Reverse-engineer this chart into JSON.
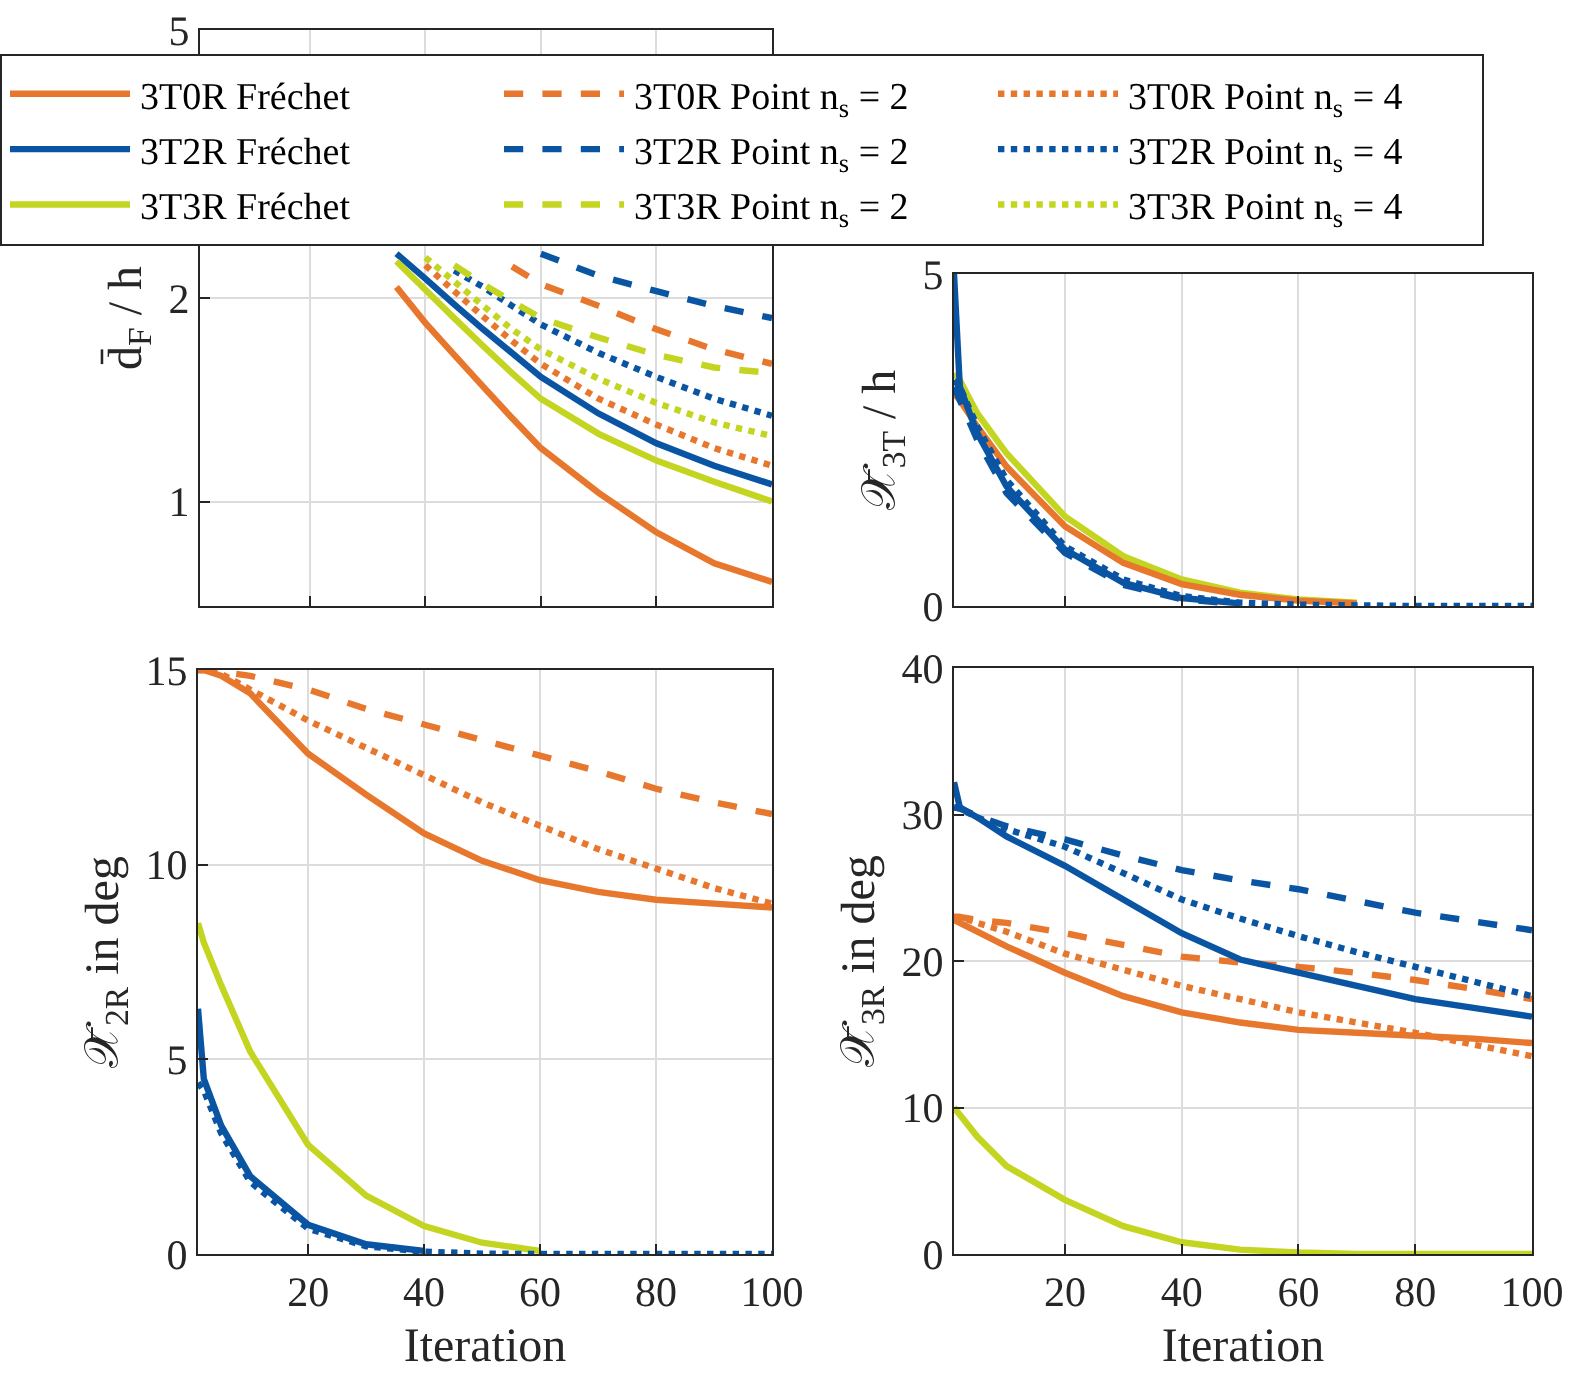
{
  "chart_data": [
    {
      "type": "line",
      "ylabel": "d̄$_{F}$ / h",
      "log": "y",
      "ylim": [
        0.7,
        5
      ],
      "yticks": [
        1,
        2,
        5
      ],
      "xlim": [
        1,
        100
      ],
      "xticks": [
        20,
        40,
        60,
        80,
        100
      ],
      "tick_labels": "y",
      "grid": true,
      "legend": "top",
      "x": [
        35,
        40,
        45,
        50,
        55,
        60,
        70,
        80,
        90,
        100
      ],
      "series": [
        {
          "name": "3T0R Fréchet",
          "color": "#e8772e",
          "line_style": "solid",
          "values": [
            2.08,
            1.84,
            1.65,
            1.48,
            1.33,
            1.2,
            1.03,
            0.9,
            0.81,
            0.76
          ]
        },
        {
          "name": "3T0R Point n$_{s}$ = 2",
          "color": "#e8772e",
          "line_style": "dashed",
          "values": [
            null,
            null,
            null,
            null,
            2.23,
            2.1,
            1.95,
            1.8,
            1.68,
            1.6
          ]
        },
        {
          "name": "3T0R Point n$_{s}$ = 4",
          "color": "#e8772e",
          "line_style": "dotted",
          "values": [
            null,
            2.24,
            2.05,
            1.88,
            1.73,
            1.6,
            1.42,
            1.3,
            1.2,
            1.13
          ]
        },
        {
          "name": "3T2R Fréchet",
          "color": "#0a55a3",
          "line_style": "solid",
          "values": [
            2.33,
            2.14,
            1.96,
            1.8,
            1.66,
            1.53,
            1.35,
            1.22,
            1.13,
            1.06
          ]
        },
        {
          "name": "3T2R Point n$_{s}$ = 2",
          "color": "#0a55a3",
          "line_style": "dashed",
          "values": [
            null,
            null,
            null,
            null,
            null,
            2.33,
            2.16,
            2.05,
            1.95,
            1.87
          ]
        },
        {
          "name": "3T2R Point n$_{s}$ = 4",
          "color": "#0a55a3",
          "line_style": "dotted",
          "values": [
            null,
            null,
            2.2,
            2.08,
            1.95,
            1.83,
            1.66,
            1.53,
            1.42,
            1.34
          ]
        },
        {
          "name": "3T3R Fréchet",
          "color": "#c3d520",
          "line_style": "solid",
          "values": [
            2.27,
            2.06,
            1.87,
            1.7,
            1.55,
            1.42,
            1.26,
            1.15,
            1.07,
            1.0
          ]
        },
        {
          "name": "3T3R Point n$_{s}$ = 2",
          "color": "#c3d520",
          "line_style": "dashed",
          "values": [
            null,
            null,
            2.24,
            2.1,
            1.98,
            1.87,
            1.75,
            1.65,
            1.58,
            1.55
          ]
        },
        {
          "name": "3T3R Point n$_{s}$ = 4",
          "color": "#c3d520",
          "line_style": "dotted",
          "values": [
            null,
            2.3,
            2.12,
            1.95,
            1.8,
            1.68,
            1.52,
            1.4,
            1.31,
            1.25
          ]
        }
      ]
    },
    {
      "type": "line",
      "ylabel": "𝒳̄$_{3T}$ / h",
      "ylim": [
        0,
        5
      ],
      "yticks": [
        0,
        5
      ],
      "xlim": [
        1,
        100
      ],
      "xticks": [
        20,
        40,
        60,
        80,
        100
      ],
      "tick_labels": "y",
      "grid": true,
      "x": [
        1,
        2,
        5,
        10,
        20,
        30,
        40,
        50,
        60,
        70,
        80,
        90,
        100
      ],
      "series": [
        {
          "color": "#c3d520",
          "line_style": "solid",
          "values": [
            3.5,
            3.4,
            2.9,
            2.3,
            1.35,
            0.75,
            0.4,
            0.2,
            0.1,
            0.05,
            null,
            null,
            null
          ]
        },
        {
          "color": "#e8772e",
          "line_style": "solid",
          "values": [
            3.2,
            3.1,
            2.7,
            2.1,
            1.2,
            0.65,
            0.33,
            0.17,
            0.08,
            0.04,
            null,
            null,
            null
          ]
        },
        {
          "color": "#0a55a3",
          "line_style": "solid",
          "values": [
            5,
            3.3,
            2.6,
            1.8,
            0.85,
            0.35,
            0.12,
            0.04,
            null,
            null,
            null,
            null,
            null
          ]
        },
        {
          "color": "#0a55a3",
          "line_style": "dashed",
          "values": [
            3.3,
            3.1,
            2.5,
            1.7,
            0.8,
            0.32,
            0.1,
            0.03,
            null,
            null,
            null,
            null,
            null
          ]
        },
        {
          "color": "#0a55a3",
          "line_style": "dotted",
          "values": [
            3.4,
            3.3,
            2.7,
            1.9,
            0.9,
            0.4,
            0.15,
            0.05,
            0.02,
            0.01,
            0,
            0,
            0
          ]
        }
      ]
    },
    {
      "type": "line",
      "ylabel": "𝒳̄$_{2R}$ in deg",
      "xlabel": "Iteration",
      "ylim": [
        0,
        15
      ],
      "yticks": [
        0,
        5,
        10,
        15
      ],
      "xlim": [
        1,
        100
      ],
      "xticks": [
        20,
        40,
        60,
        80,
        100
      ],
      "grid": true,
      "x": [
        1,
        2,
        5,
        10,
        20,
        30,
        40,
        50,
        60,
        70,
        80,
        90,
        100
      ],
      "series": [
        {
          "color": "#e8772e",
          "line_style": "solid",
          "values": [
            15,
            15,
            14.85,
            14.4,
            12.85,
            11.8,
            10.8,
            10.1,
            9.6,
            9.3,
            9.1,
            9.0,
            8.9
          ]
        },
        {
          "color": "#e8772e",
          "line_style": "dashed",
          "values": [
            15,
            15,
            14.95,
            14.85,
            14.5,
            14.0,
            13.6,
            13.2,
            12.8,
            12.4,
            11.95,
            11.6,
            11.3
          ]
        },
        {
          "color": "#e8772e",
          "line_style": "dotted",
          "values": [
            15,
            15,
            14.9,
            14.5,
            13.7,
            13.0,
            12.3,
            11.6,
            11.0,
            10.4,
            9.9,
            9.4,
            9.0
          ]
        },
        {
          "color": "#c3d520",
          "line_style": "solid",
          "values": [
            8.5,
            8.0,
            6.9,
            5.2,
            2.8,
            1.5,
            0.72,
            0.29,
            0.08,
            null,
            null,
            null,
            null
          ]
        },
        {
          "color": "#0a55a3",
          "line_style": "solid",
          "values": [
            6.3,
            4.5,
            3.3,
            2.0,
            0.75,
            0.25,
            0.08,
            null,
            null,
            null,
            null,
            null,
            null
          ]
        },
        {
          "color": "#0a55a3",
          "line_style": "dotted",
          "values": [
            4.4,
            4.2,
            3.1,
            1.85,
            0.65,
            0.2,
            0.06,
            0.01,
            0,
            0,
            0,
            0,
            0
          ]
        }
      ]
    },
    {
      "type": "line",
      "ylabel": "𝒳̄$_{3R}$ in deg",
      "xlabel": "Iteration",
      "ylim": [
        0,
        40
      ],
      "yticks": [
        0,
        10,
        20,
        30,
        40
      ],
      "xlim": [
        1,
        100
      ],
      "xticks": [
        20,
        40,
        60,
        80,
        100
      ],
      "grid": true,
      "x": [
        1,
        2,
        5,
        10,
        20,
        30,
        40,
        50,
        60,
        70,
        80,
        90,
        100
      ],
      "series": [
        {
          "color": "#e8772e",
          "line_style": "solid",
          "values": [
            22.8,
            22.6,
            22,
            21.0,
            19.2,
            17.6,
            16.5,
            15.8,
            15.3,
            15.1,
            14.9,
            14.7,
            14.4
          ]
        },
        {
          "color": "#e8772e",
          "line_style": "dashed",
          "values": [
            23,
            23,
            22.8,
            22.6,
            21.9,
            21.1,
            20.3,
            19.9,
            19.6,
            19.2,
            18.7,
            18.1,
            17.4
          ]
        },
        {
          "color": "#e8772e",
          "line_style": "dotted",
          "values": [
            23,
            23,
            22.6,
            22.0,
            20.5,
            19.4,
            18.3,
            17.4,
            16.5,
            15.8,
            15.1,
            14.3,
            13.5
          ]
        },
        {
          "color": "#0a55a3",
          "line_style": "solid",
          "values": [
            32.2,
            30.5,
            29.8,
            28.5,
            26.5,
            24.2,
            21.9,
            20.1,
            19.2,
            18.3,
            17.4,
            16.8,
            16.2
          ]
        },
        {
          "color": "#0a55a3",
          "line_style": "dashed",
          "values": [
            30.5,
            30.4,
            29.9,
            29.2,
            28.3,
            27.2,
            26.2,
            25.5,
            24.9,
            24.1,
            23.3,
            22.7,
            22.1
          ]
        },
        {
          "color": "#0a55a3",
          "line_style": "dotted",
          "values": [
            30.5,
            30.4,
            29.8,
            29.0,
            27.8,
            26.0,
            24.2,
            22.9,
            21.7,
            20.6,
            19.6,
            18.6,
            17.6
          ]
        },
        {
          "color": "#c3d520",
          "line_style": "solid",
          "values": [
            10,
            9.5,
            8.0,
            6.0,
            3.7,
            1.9,
            0.8,
            0.3,
            0.1,
            0,
            0,
            0,
            0
          ]
        }
      ]
    }
  ]
}
